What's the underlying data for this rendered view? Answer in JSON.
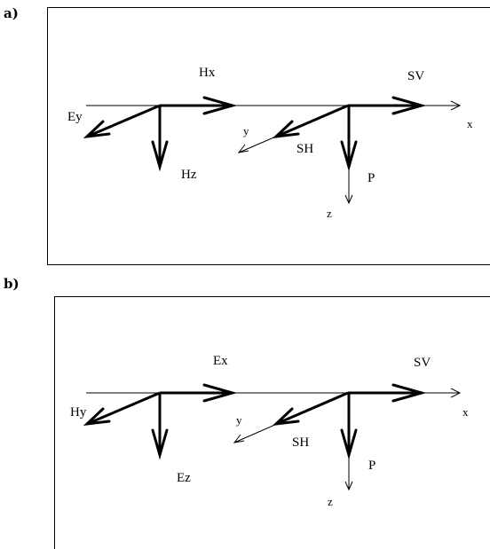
{
  "panel_a": {
    "label": "a)",
    "vectors": {
      "Hx": "Hx",
      "Ey": "Ey",
      "Hz": "Hz",
      "SV": "SV",
      "SH": "SH",
      "P": "P"
    },
    "axes": {
      "x": "x",
      "y": "y",
      "z": "z"
    }
  },
  "panel_b": {
    "label": "b)",
    "vectors": {
      "Ex": "Ex",
      "Hy": "Hy",
      "Ez": "Ez",
      "SV": "SV",
      "SH": "SH",
      "P": "P"
    },
    "axes": {
      "x": "x",
      "y": "y",
      "z": "z"
    }
  }
}
